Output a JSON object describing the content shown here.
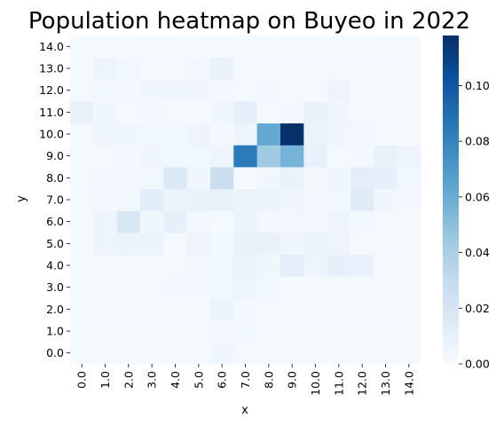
{
  "chart_data": {
    "type": "heatmap",
    "title": "Population heatmap on Buyeo in 2022",
    "xlabel": "x",
    "ylabel": "y",
    "x_categories": [
      "0.0",
      "1.0",
      "2.0",
      "3.0",
      "4.0",
      "5.0",
      "6.0",
      "7.0",
      "8.0",
      "9.0",
      "10.0",
      "11.0",
      "12.0",
      "13.0",
      "14.0"
    ],
    "y_categories": [
      "0.0",
      "1.0",
      "2.0",
      "3.0",
      "4.0",
      "5.0",
      "6.0",
      "7.0",
      "8.0",
      "9.0",
      "10.0",
      "11.0",
      "12.0",
      "13.0",
      "14.0"
    ],
    "colorscale": "Blues",
    "vmin": 0.0,
    "vmax": 0.118,
    "colorbar_ticks": [
      "0.00",
      "0.02",
      "0.04",
      "0.06",
      "0.08",
      "0.10"
    ],
    "values": [
      [
        0.0018,
        0.0018,
        0.0018,
        0.0018,
        0.0018,
        0.0018,
        0.0048,
        0.0018,
        0.0018,
        0.0018,
        0.0018,
        0.0018,
        0.0018,
        0.0018,
        0.0018
      ],
      [
        0.0018,
        0.0018,
        0.0018,
        0.0018,
        0.0018,
        0.0018,
        0.003,
        0.004,
        0.0018,
        0.0018,
        0.0018,
        0.0018,
        0.0018,
        0.0018,
        0.0018
      ],
      [
        0.0018,
        0.0018,
        0.0018,
        0.0018,
        0.0018,
        0.0018,
        0.007,
        0.003,
        0.0018,
        0.0018,
        0.0018,
        0.0018,
        0.0018,
        0.0018,
        0.0018
      ],
      [
        0.0018,
        0.0018,
        0.0018,
        0.0018,
        0.003,
        0.003,
        0.004,
        0.006,
        0.004,
        0.0018,
        0.0018,
        0.0018,
        0.0018,
        0.0018,
        0.0018
      ],
      [
        0.0018,
        0.0018,
        0.0018,
        0.0018,
        0.0018,
        0.003,
        0.004,
        0.007,
        0.005,
        0.012,
        0.006,
        0.01,
        0.008,
        0.0018,
        0.0018
      ],
      [
        0.0018,
        0.006,
        0.007,
        0.007,
        0.0018,
        0.006,
        0.004,
        0.008,
        0.008,
        0.005,
        0.007,
        0.006,
        0.0018,
        0.0018,
        0.0018
      ],
      [
        0.0018,
        0.006,
        0.018,
        0.005,
        0.01,
        0.004,
        0.0018,
        0.007,
        0.003,
        0.004,
        0.003,
        0.006,
        0.004,
        0.0018,
        0.0018
      ],
      [
        0.0018,
        0.003,
        0.004,
        0.013,
        0.007,
        0.008,
        0.009,
        0.007,
        0.007,
        0.005,
        0.003,
        0.004,
        0.014,
        0.005,
        0.003
      ],
      [
        0.0018,
        0.003,
        0.003,
        0.004,
        0.016,
        0.005,
        0.026,
        0.001,
        0.005,
        0.008,
        0.003,
        0.005,
        0.012,
        0.01,
        0.004
      ],
      [
        0.0018,
        0.0018,
        0.003,
        0.005,
        0.004,
        0.004,
        0.006,
        0.084,
        0.043,
        0.056,
        0.009,
        0.0018,
        0.003,
        0.009,
        0.006
      ],
      [
        0.0018,
        0.005,
        0.005,
        0.004,
        0.004,
        0.006,
        0.003,
        0.006,
        0.062,
        0.118,
        0.007,
        0.005,
        0.003,
        0.0018,
        0.0018
      ],
      [
        0.009,
        0.005,
        0.0018,
        0.003,
        0.0018,
        0.0018,
        0.005,
        0.011,
        0.0018,
        0.003,
        0.008,
        0.005,
        0.0018,
        0.0018,
        0.0018
      ],
      [
        0.0018,
        0.004,
        0.003,
        0.005,
        0.005,
        0.005,
        0.003,
        0.0018,
        0.003,
        0.0018,
        0.0018,
        0.006,
        0.0018,
        0.0018,
        0.0018
      ],
      [
        0.0018,
        0.006,
        0.004,
        0.0018,
        0.0018,
        0.004,
        0.008,
        0.0018,
        0.0018,
        0.0018,
        0.0018,
        0.0018,
        0.0018,
        0.0018,
        0.0018
      ],
      [
        0.0018,
        0.0018,
        0.0018,
        0.0018,
        0.0018,
        0.0018,
        0.0018,
        0.0018,
        0.0018,
        0.0018,
        0.0018,
        0.0018,
        0.0018,
        0.0018,
        0.0018
      ]
    ]
  }
}
